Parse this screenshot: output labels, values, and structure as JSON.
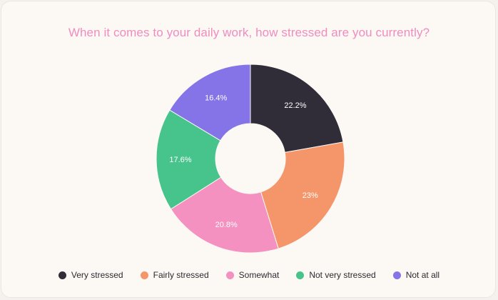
{
  "chart_data": {
    "type": "pie",
    "title": "When it comes to your daily work, how stressed are you currently?",
    "legend_position": "bottom",
    "categories": [
      "Very stressed",
      "Fairly stressed",
      "Somewhat",
      "Not very stressed",
      "Not at all"
    ],
    "values": [
      22.2,
      23,
      20.8,
      17.6,
      16.4
    ],
    "value_labels": [
      "22.2%",
      "23%",
      "20.8%",
      "17.6%",
      "16.4%"
    ],
    "colors": [
      "#302d38",
      "#f5966a",
      "#f491c0",
      "#47c38c",
      "#8573e8"
    ]
  }
}
